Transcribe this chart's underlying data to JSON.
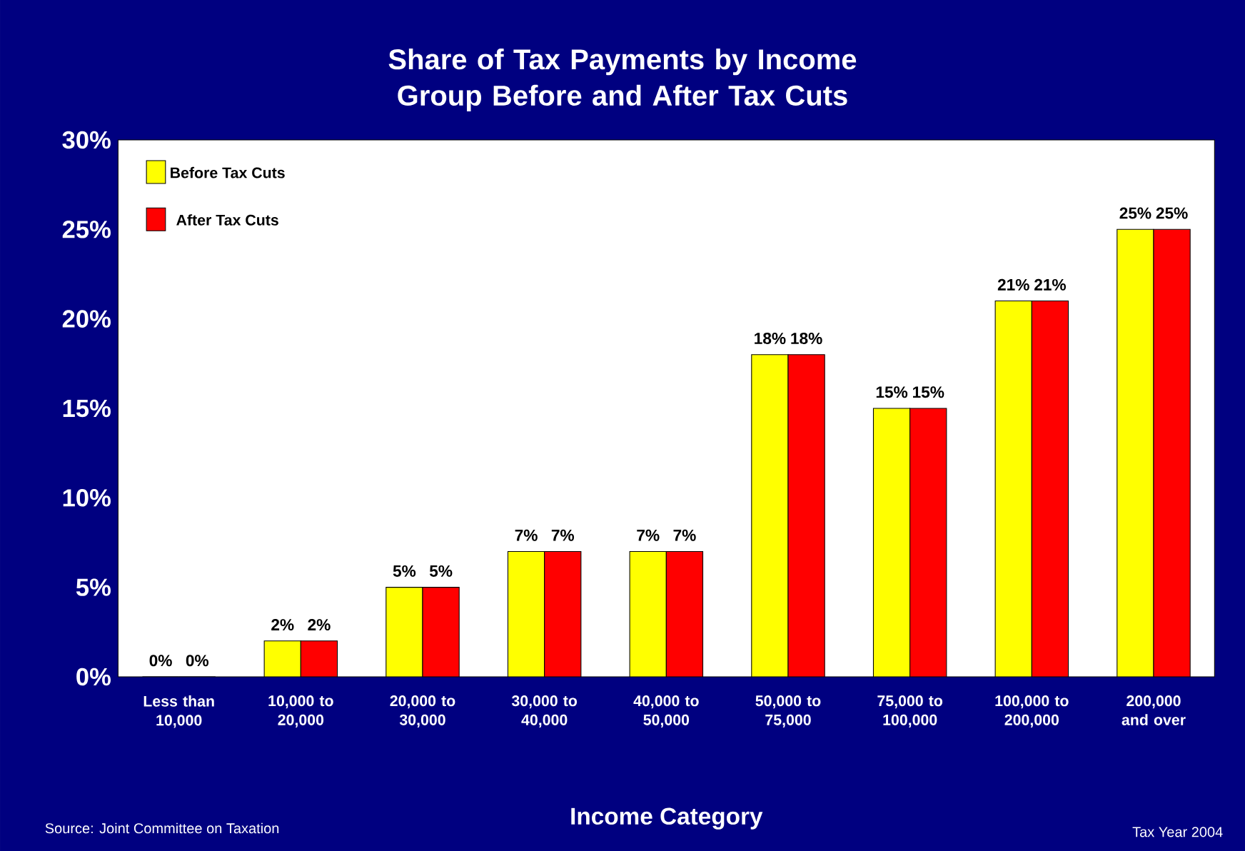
{
  "chart_data": {
    "type": "bar",
    "title": "Share of Tax Payments by Income Group Before and After Tax Cuts",
    "xlabel": "Income Category",
    "categories": [
      "Less than 10,000",
      "10,000 to 20,000",
      "20,000 to 30,000",
      "30,000 to 40,000",
      "40,000 to 50,000",
      "50,000 to 75,000",
      "75,000 to 100,000",
      "100,000 to 200,000",
      "200,000 and over"
    ],
    "series": [
      {
        "name": "Before Tax Cuts",
        "color": "#ffff00",
        "values": [
          0,
          2,
          5,
          7,
          7,
          18,
          15,
          21,
          25
        ],
        "value_labels": [
          "0%",
          "2%",
          "5%",
          "7%",
          "7%",
          "18%",
          "15%",
          "21%",
          "25%"
        ]
      },
      {
        "name": "After Tax Cuts",
        "color": "#ff0000",
        "values": [
          0,
          2,
          5,
          7,
          7,
          18,
          15,
          21,
          25
        ],
        "value_labels": [
          "0%",
          "2%",
          "5%",
          "7%",
          "7%",
          "18%",
          "15%",
          "21%",
          "25%"
        ]
      }
    ],
    "ylim": [
      0,
      30
    ],
    "yticks": [
      {
        "value": 0,
        "label": "0%"
      },
      {
        "value": 5,
        "label": "5%"
      },
      {
        "value": 10,
        "label": "10%"
      },
      {
        "value": 15,
        "label": "15%"
      },
      {
        "value": 20,
        "label": "20%"
      },
      {
        "value": 25,
        "label": "25%"
      },
      {
        "value": 30,
        "label": "30%"
      }
    ],
    "legend": "top left",
    "grid": false,
    "annotations": [
      "Source: Joint  Committee on Taxation",
      "Tax Year 2004"
    ]
  }
}
